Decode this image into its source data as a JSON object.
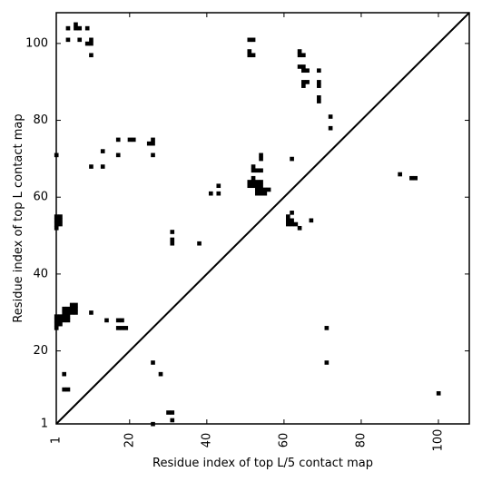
{
  "chart_data": {
    "type": "heatmap",
    "title": "",
    "xlabel": "Residue index of top L/5 contact map",
    "ylabel": "Residue index of top L contact map",
    "xlim": [
      1,
      108
    ],
    "ylim": [
      1,
      108
    ],
    "xticks": [
      1,
      20,
      40,
      60,
      80,
      100
    ],
    "yticks": [
      1,
      20,
      40,
      60,
      80,
      100
    ],
    "diagonal": true,
    "cell_color": "#000000",
    "line_color": "#000000",
    "upper_contacts": [
      [
        1,
        71
      ],
      [
        1,
        54
      ],
      [
        1,
        53
      ],
      [
        1,
        52
      ],
      [
        1,
        55
      ],
      [
        2,
        54
      ],
      [
        2,
        53
      ],
      [
        2,
        55
      ],
      [
        4,
        104
      ],
      [
        4,
        101
      ],
      [
        6,
        105
      ],
      [
        6,
        104
      ],
      [
        7,
        104
      ],
      [
        7,
        101
      ],
      [
        9,
        104
      ],
      [
        9,
        100
      ],
      [
        10,
        100
      ],
      [
        10,
        101
      ],
      [
        10,
        97
      ],
      [
        10,
        68
      ],
      [
        13,
        72
      ],
      [
        13,
        68
      ],
      [
        17,
        75
      ],
      [
        17,
        71
      ],
      [
        20,
        75
      ],
      [
        21,
        75
      ],
      [
        25,
        74
      ],
      [
        26,
        74
      ],
      [
        26,
        75
      ],
      [
        26,
        71
      ],
      [
        31,
        51
      ],
      [
        31,
        49
      ],
      [
        31,
        48
      ],
      [
        38,
        48
      ],
      [
        41,
        61
      ],
      [
        43,
        61
      ],
      [
        43,
        63
      ],
      [
        51,
        101
      ],
      [
        51,
        98
      ],
      [
        51,
        97
      ],
      [
        52,
        101
      ],
      [
        52,
        97
      ],
      [
        51,
        64
      ],
      [
        51,
        63
      ],
      [
        52,
        64
      ],
      [
        52,
        63
      ],
      [
        52,
        65
      ],
      [
        52,
        67
      ],
      [
        52,
        68
      ],
      [
        53,
        67
      ],
      [
        53,
        64
      ],
      [
        53,
        63
      ],
      [
        53,
        62
      ],
      [
        53,
        61
      ],
      [
        54,
        71
      ],
      [
        54,
        70
      ],
      [
        54,
        67
      ],
      [
        54,
        64
      ],
      [
        54,
        63
      ],
      [
        54,
        62
      ],
      [
        54,
        61
      ],
      [
        55,
        62
      ],
      [
        55,
        61
      ],
      [
        56,
        62
      ],
      [
        61,
        55
      ],
      [
        61,
        54
      ],
      [
        61,
        53
      ],
      [
        62,
        70
      ],
      [
        62,
        56
      ],
      [
        62,
        54
      ],
      [
        62,
        53
      ],
      [
        63,
        53
      ],
      [
        64,
        52
      ],
      [
        64,
        98
      ],
      [
        64,
        97
      ],
      [
        64,
        94
      ],
      [
        65,
        97
      ],
      [
        65,
        94
      ],
      [
        65,
        93
      ],
      [
        65,
        90
      ],
      [
        65,
        89
      ],
      [
        66,
        93
      ],
      [
        66,
        90
      ],
      [
        67,
        54
      ],
      [
        69,
        93
      ],
      [
        69,
        90
      ],
      [
        69,
        89
      ],
      [
        69,
        86
      ],
      [
        69,
        85
      ],
      [
        72,
        81
      ],
      [
        72,
        78
      ],
      [
        90,
        66
      ],
      [
        93,
        65
      ],
      [
        94,
        65
      ]
    ],
    "lower_contacts": [
      [
        1,
        29
      ],
      [
        1,
        28
      ],
      [
        1,
        27
      ],
      [
        1,
        26
      ],
      [
        2,
        29
      ],
      [
        2,
        28
      ],
      [
        2,
        27
      ],
      [
        3,
        31
      ],
      [
        3,
        30
      ],
      [
        3,
        29
      ],
      [
        3,
        28
      ],
      [
        4,
        31
      ],
      [
        4,
        30
      ],
      [
        4,
        29
      ],
      [
        4,
        28
      ],
      [
        5,
        32
      ],
      [
        5,
        31
      ],
      [
        5,
        30
      ],
      [
        6,
        32
      ],
      [
        6,
        31
      ],
      [
        6,
        30
      ],
      [
        3,
        14
      ],
      [
        3,
        10
      ],
      [
        4,
        10
      ],
      [
        10,
        30
      ],
      [
        14,
        28
      ],
      [
        17,
        28
      ],
      [
        17,
        26
      ],
      [
        18,
        28
      ],
      [
        18,
        26
      ],
      [
        19,
        26
      ],
      [
        26,
        17
      ],
      [
        26,
        1
      ],
      [
        28,
        14
      ],
      [
        30,
        4
      ],
      [
        31,
        4
      ],
      [
        31,
        2
      ],
      [
        71,
        26
      ],
      [
        71,
        17
      ],
      [
        100,
        9
      ]
    ]
  }
}
